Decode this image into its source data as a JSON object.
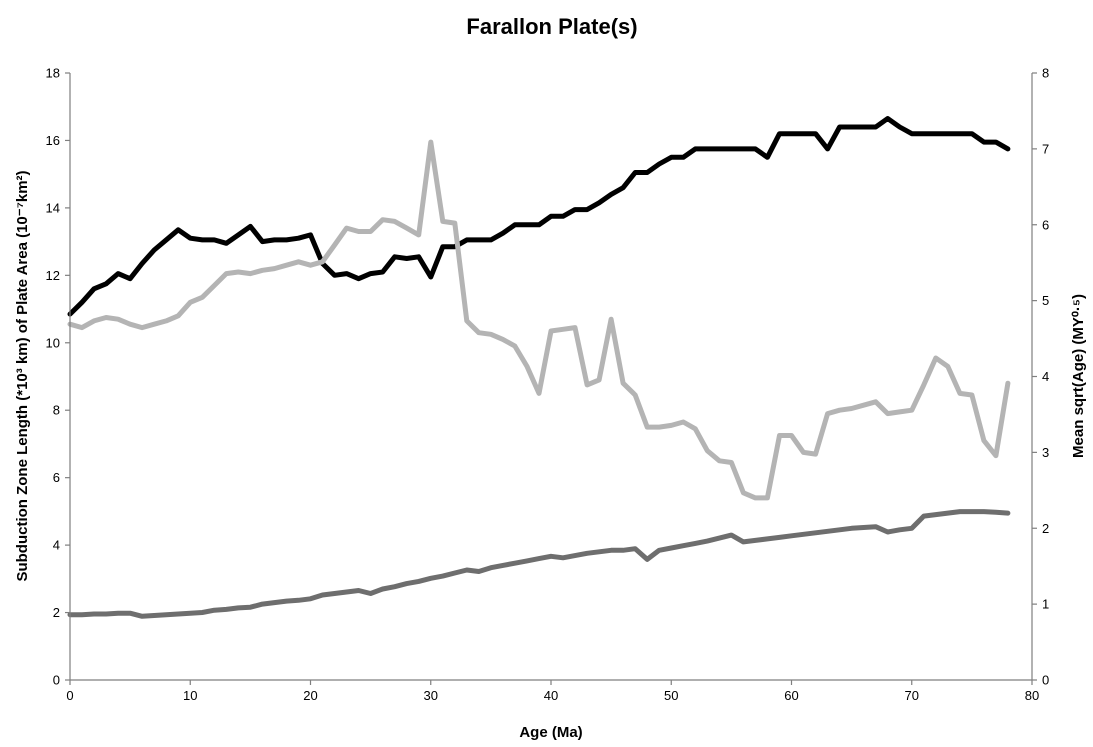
{
  "chart_data": {
    "type": "line",
    "title": "Farallon Plate(s)",
    "xlabel": "Age (Ma)",
    "ylabel": "Subduction Zone Length (*10³ km) of Plate Area (10⁻⁷km²)",
    "ylabel_right": "Mean sqrt(Age) (MY⁰·⁵)",
    "xlim": [
      0,
      80
    ],
    "ylim": [
      0,
      18
    ],
    "ylim_right": [
      0,
      8
    ],
    "x_ticks": [
      "0",
      "10",
      "20",
      "30",
      "40",
      "50",
      "60",
      "70",
      "80"
    ],
    "y_ticks": [
      "0",
      "2",
      "4",
      "6",
      "8",
      "10",
      "12",
      "14",
      "16",
      "18"
    ],
    "y_ticks_right": [
      "0",
      "1",
      "2",
      "3",
      "4",
      "5",
      "6",
      "7",
      "8"
    ],
    "grid": false,
    "legend": "none",
    "x": [
      0,
      1,
      2,
      3,
      4,
      5,
      6,
      7,
      8,
      9,
      10,
      11,
      12,
      13,
      14,
      15,
      16,
      17,
      18,
      19,
      20,
      21,
      22,
      23,
      24,
      25,
      26,
      27,
      28,
      29,
      30,
      31,
      32,
      33,
      34,
      35,
      36,
      37,
      38,
      39,
      40,
      41,
      42,
      43,
      44,
      45,
      46,
      47,
      48,
      49,
      50,
      51,
      52,
      53,
      54,
      55,
      56,
      57,
      58,
      59,
      60,
      61,
      62,
      63,
      64,
      65,
      66,
      67,
      68,
      69,
      70,
      71,
      72,
      73,
      74,
      75,
      76,
      77,
      78
    ],
    "series": [
      {
        "axis": "left",
        "color": "#000000",
        "values": [
          10.85,
          11.2,
          11.6,
          11.75,
          12.05,
          11.9,
          12.35,
          12.75,
          13.05,
          13.35,
          13.1,
          13.05,
          13.05,
          12.95,
          13.2,
          13.45,
          13.0,
          13.05,
          13.05,
          13.1,
          13.2,
          12.35,
          12.0,
          12.05,
          11.9,
          12.05,
          12.1,
          12.55,
          12.5,
          12.55,
          11.95,
          12.85,
          12.85,
          13.05,
          13.05,
          13.05,
          13.25,
          13.5,
          13.5,
          13.5,
          13.75,
          13.75,
          13.95,
          13.95,
          14.15,
          14.4,
          14.6,
          15.05,
          15.05,
          15.3,
          15.5,
          15.5,
          15.75,
          15.75,
          15.75,
          15.75,
          15.75,
          15.75,
          15.5,
          16.2,
          16.2,
          16.2,
          16.2,
          15.75,
          16.4,
          16.4,
          16.4,
          16.4,
          16.65,
          16.4,
          16.2,
          16.2,
          16.2,
          16.2,
          16.2,
          16.2,
          15.95,
          15.95,
          15.75
        ]
      },
      {
        "axis": "left",
        "color": "#b4b4b4",
        "values": [
          10.55,
          10.45,
          10.65,
          10.75,
          10.7,
          10.55,
          10.45,
          10.55,
          10.65,
          10.8,
          11.2,
          11.35,
          11.7,
          12.05,
          12.1,
          12.05,
          12.15,
          12.2,
          12.3,
          12.4,
          12.3,
          12.4,
          12.9,
          13.4,
          13.3,
          13.3,
          13.65,
          13.6,
          13.4,
          13.2,
          15.95,
          13.6,
          13.55,
          10.65,
          10.3,
          10.25,
          10.1,
          9.9,
          9.3,
          8.5,
          10.35,
          10.4,
          10.45,
          8.75,
          8.9,
          10.7,
          8.8,
          8.45,
          7.5,
          7.5,
          7.55,
          7.65,
          7.45,
          6.8,
          6.5,
          6.45,
          5.55,
          5.4,
          5.4,
          7.25,
          7.25,
          6.75,
          6.7,
          7.9,
          8.0,
          8.05,
          8.15,
          8.25,
          7.9,
          7.95,
          8.0,
          8.75,
          9.55,
          9.3,
          8.5,
          8.45,
          7.1,
          6.65,
          8.8
        ]
      },
      {
        "axis": "right",
        "color": "#6e6e6e",
        "values": [
          0.86,
          0.86,
          0.87,
          0.87,
          0.88,
          0.88,
          0.84,
          0.85,
          0.86,
          0.87,
          0.88,
          0.89,
          0.92,
          0.93,
          0.95,
          0.96,
          1.0,
          1.02,
          1.04,
          1.05,
          1.07,
          1.12,
          1.14,
          1.16,
          1.18,
          1.14,
          1.2,
          1.23,
          1.27,
          1.3,
          1.34,
          1.37,
          1.41,
          1.45,
          1.43,
          1.48,
          1.51,
          1.54,
          1.57,
          1.6,
          1.63,
          1.61,
          1.64,
          1.67,
          1.69,
          1.71,
          1.71,
          1.73,
          1.59,
          1.71,
          1.74,
          1.77,
          1.8,
          1.83,
          1.87,
          1.91,
          1.82,
          1.84,
          1.86,
          1.88,
          1.9,
          1.92,
          1.94,
          1.96,
          1.98,
          2.0,
          2.01,
          2.02,
          1.95,
          1.98,
          2.0,
          2.16,
          2.18,
          2.2,
          2.22,
          2.22,
          2.22,
          2.21,
          2.2
        ]
      }
    ]
  }
}
